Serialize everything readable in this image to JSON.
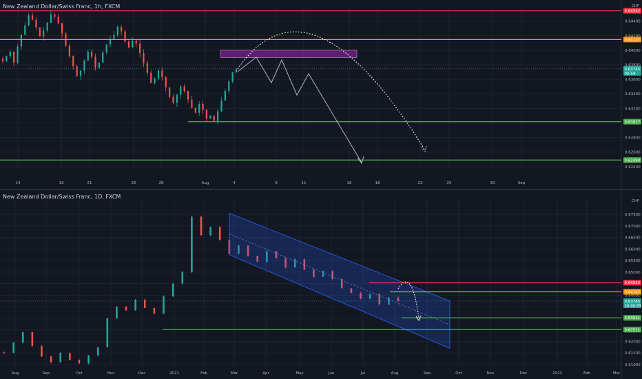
{
  "colors": {
    "bg": "#131722",
    "grid": "#1f2330",
    "up": "#26a69a",
    "down": "#ef5350",
    "red_line": "#f23645",
    "orange_line": "#ff9800",
    "green_line": "#4caf50",
    "axis_text": "#b2b5be",
    "zone": "#9c27b0",
    "channel": "#2962ff",
    "path": "#b2b5be"
  },
  "chart_data": [
    {
      "type": "candlestick",
      "title": "New Zealand Dollar/Swiss Franc, 1h, FXCM",
      "currency_label": "CHF",
      "price_ticks": [
        "0.64400",
        "0.64200",
        "0.64000",
        "0.63800",
        "0.63600",
        "0.63400",
        "0.63200",
        "0.63000",
        "0.62800",
        "0.62600",
        "0.62400"
      ],
      "ylim": [
        0.6236,
        0.6452
      ],
      "time_ticks": [
        "14",
        "19",
        "21",
        "26",
        "28",
        "Aug",
        "4",
        "9",
        "11",
        "16",
        "18",
        "23",
        "25",
        "30",
        "Sep"
      ],
      "horizontal_levels": [
        {
          "price": 0.64542,
          "label": "0.64542",
          "color": "red"
        },
        {
          "price": 0.64147,
          "label": "0.64147",
          "color": "orange"
        },
        {
          "price": 0.63017,
          "label": "0.63017",
          "color": "green"
        },
        {
          "price": 0.6249,
          "label": "0.62490",
          "color": "green"
        }
      ],
      "last_price": {
        "price": 0.63745,
        "label": "0.63745",
        "countdown": "00:59"
      },
      "supply_zone": {
        "from": 0.639,
        "to": 0.64
      },
      "candles_close": [
        0.6385,
        0.6392,
        0.6398,
        0.6383,
        0.6405,
        0.6421,
        0.6434,
        0.6448,
        0.6442,
        0.6431,
        0.6419,
        0.6427,
        0.6438,
        0.6449,
        0.6446,
        0.6437,
        0.6423,
        0.6406,
        0.6392,
        0.6378,
        0.6365,
        0.6372,
        0.6386,
        0.6398,
        0.6391,
        0.6376,
        0.6383,
        0.6397,
        0.6408,
        0.6416,
        0.6421,
        0.6432,
        0.6426,
        0.6412,
        0.6404,
        0.6413,
        0.6409,
        0.6396,
        0.6382,
        0.6369,
        0.6355,
        0.6361,
        0.6372,
        0.6363,
        0.6349,
        0.6336,
        0.6328,
        0.6339,
        0.635,
        0.6344,
        0.6332,
        0.6321,
        0.6314,
        0.6326,
        0.6318,
        0.6306,
        0.631,
        0.6303,
        0.6316,
        0.6331,
        0.6344,
        0.6357,
        0.637,
        0.6374
      ]
    },
    {
      "type": "candlestick",
      "title": "New Zealand Dollar/Swiss Franc, 1D, FXCM",
      "currency_label": "CHF",
      "price_ticks": [
        "0.67500",
        "0.67000",
        "0.66500",
        "0.66000",
        "0.65500",
        "0.65000",
        "0.64500",
        "0.64000",
        "0.63500",
        "0.63000",
        "0.62500",
        "0.62000",
        "0.61500",
        "0.61000"
      ],
      "ylim": [
        0.6097,
        0.678
      ],
      "time_ticks": [
        "Aug",
        "Sep",
        "Oct",
        "Nov",
        "Dec",
        "2021",
        "Feb",
        "Mar",
        "Apr",
        "May",
        "Jun",
        "Jul",
        "Aug",
        "Sep",
        "Oct",
        "Nov",
        "Dec",
        "2022",
        "Feb",
        "Mar"
      ],
      "horizontal_levels": [
        {
          "price": 0.64542,
          "label": "0.64542",
          "color": "red"
        },
        {
          "price": 0.64147,
          "label": "0.64147",
          "color": "orange"
        },
        {
          "price": 0.63021,
          "label": "0.63021",
          "color": "green"
        },
        {
          "price": 0.62511,
          "label": "0.62511",
          "color": "green"
        }
      ],
      "last_price": {
        "price": 0.63745,
        "label": "0.63745",
        "countdown": "16:00:59"
      },
      "channel": {
        "upper_start": 0.6755,
        "upper_end": 0.6375,
        "lower_start": 0.6575,
        "lower_end": 0.617
      },
      "candles_close": [
        0.615,
        0.6195,
        0.624,
        0.618,
        0.6135,
        0.611,
        0.615,
        0.612,
        0.6105,
        0.614,
        0.6175,
        0.63,
        0.635,
        0.6335,
        0.638,
        0.6345,
        0.632,
        0.6395,
        0.645,
        0.65,
        0.674,
        0.666,
        0.6695,
        0.664,
        0.658,
        0.6615,
        0.657,
        0.6545,
        0.659,
        0.656,
        0.652,
        0.6555,
        0.651,
        0.648,
        0.6505,
        0.647,
        0.643,
        0.641,
        0.6385,
        0.6405,
        0.636,
        0.639,
        0.6374
      ]
    }
  ]
}
